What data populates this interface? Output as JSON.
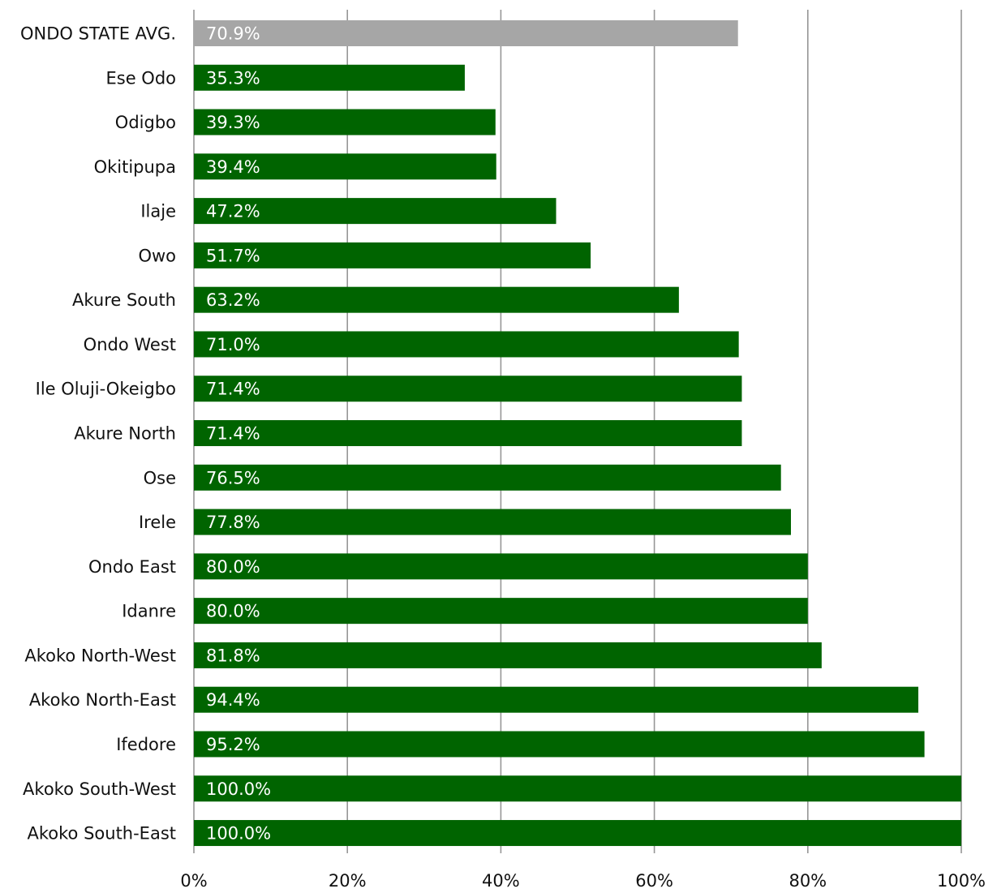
{
  "chart_data": {
    "type": "bar",
    "orientation": "horizontal",
    "title": "",
    "xlabel": "",
    "ylabel": "",
    "xlim": [
      0,
      100
    ],
    "x_ticks": [
      0,
      20,
      40,
      60,
      80,
      100
    ],
    "x_tick_labels": [
      "0%",
      "20%",
      "40%",
      "60%",
      "80%",
      "100%"
    ],
    "grid": "vertical",
    "legend": "none",
    "categories": [
      "ONDO STATE AVG.",
      "Ese Odo",
      "Odigbo",
      "Okitipupa",
      "Ilaje",
      "Owo",
      "Akure South",
      "Ondo West",
      "Ile Oluji-Okeigbo",
      "Akure North",
      "Ose",
      "Irele",
      "Ondo East",
      "Idanre",
      "Akoko North-West",
      "Akoko North-East",
      "Ifedore",
      "Akoko South-West",
      "Akoko South-East"
    ],
    "values": [
      70.9,
      35.3,
      39.3,
      39.4,
      47.2,
      51.7,
      63.2,
      71.0,
      71.4,
      71.4,
      76.5,
      77.8,
      80.0,
      80.0,
      81.8,
      94.4,
      95.2,
      100.0,
      100.0
    ],
    "value_labels": [
      "70.9%",
      "35.3%",
      "39.3%",
      "39.4%",
      "47.2%",
      "51.7%",
      "63.2%",
      "71.0%",
      "71.4%",
      "71.4%",
      "76.5%",
      "77.8%",
      "80.0%",
      "80.0%",
      "81.8%",
      "94.4%",
      "95.2%",
      "100.0%",
      "100.0%"
    ],
    "colors": {
      "average_bar": "#a6a6a6",
      "bar": "#006400",
      "gridline": "#969696",
      "value_text": "#ffffff",
      "label_text": "#111111"
    }
  }
}
